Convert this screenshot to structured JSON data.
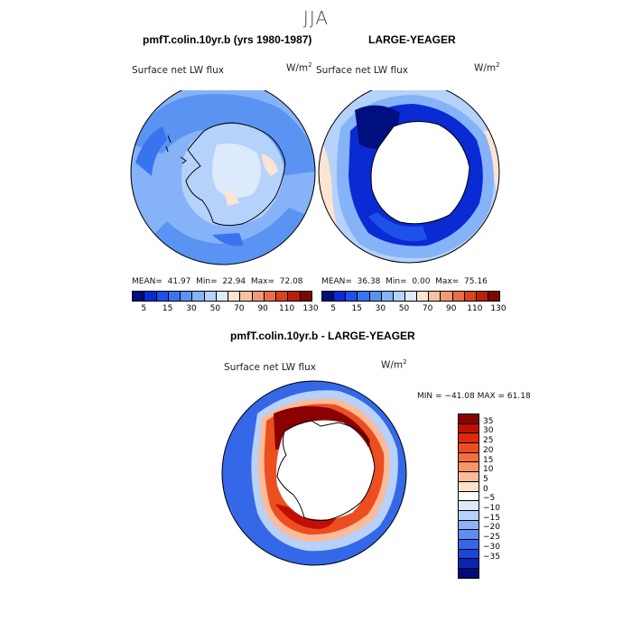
{
  "season": "JJA",
  "panels": [
    {
      "title": "pmfT.colin.10yr.b (yrs 1980-1987)",
      "var": "Surface net LW flux",
      "units": "W/m",
      "units_sup": "2",
      "mean_label": "MEAN=",
      "mean": "41.97",
      "min_label": "Min=",
      "min": "22.94",
      "max_label": "Max=",
      "max": "72.08"
    },
    {
      "title": "LARGE-YEAGER",
      "var": "Surface net LW flux",
      "units": "W/m",
      "units_sup": "2",
      "mean_label": "MEAN=",
      "mean": "36.38",
      "min_label": "Min=",
      "min": "0.00",
      "max_label": "Max=",
      "max": "75.16"
    },
    {
      "title": "pmfT.colin.10yr.b - LARGE-YEAGER",
      "var": "Surface net LW flux",
      "units": "W/m",
      "units_sup": "2",
      "range": "MIN = −41.08 MAX =  61.18"
    }
  ],
  "abs_colors": [
    "#000f80",
    "#0a2ad4",
    "#1f51ea",
    "#3a73f0",
    "#5b93f3",
    "#86b3f7",
    "#b4d2fa",
    "#dceafc",
    "#fbe4d2",
    "#f7c2a3",
    "#f09b76",
    "#e86e4a",
    "#d9431e",
    "#b8200a",
    "#7a0a00"
  ],
  "abs_ticks": [
    "5",
    "15",
    "30",
    "50",
    "70",
    "90",
    "110",
    "130"
  ],
  "diff_colors": [
    "#8b0000",
    "#c01006",
    "#dc2a0c",
    "#ec4e20",
    "#f56f3e",
    "#f99468",
    "#fbbb98",
    "#fde1cc",
    "#ffffff",
    "#dce9fb",
    "#b7d1f8",
    "#8db3f4",
    "#5e8ff0",
    "#3468e8",
    "#1b45d7",
    "#0b25b0",
    "#000a78"
  ],
  "diff_ticks": [
    "35",
    "30",
    "25",
    "20",
    "15",
    "10",
    "5",
    "0",
    "−5",
    "−10",
    "−15",
    "−20",
    "−25",
    "−30",
    "−35"
  ]
}
